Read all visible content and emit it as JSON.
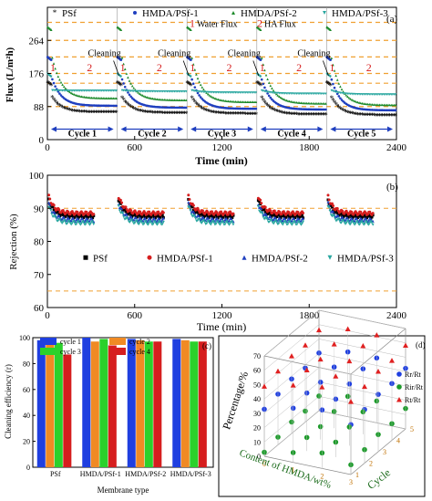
{
  "chart_data": [
    {
      "panel": "(a)",
      "type": "line",
      "xlabel": "Time (min)",
      "ylabel": "Flux (L/m²h)",
      "xlim": [
        0,
        2400
      ],
      "ylim": [
        0,
        352
      ],
      "xticks": [
        0,
        600,
        1200,
        1800,
        2400
      ],
      "yticks": [
        0,
        88,
        176,
        264
      ],
      "grid": "dashed orange horizontal reference lines",
      "legend": {
        "placement": "top",
        "entries": [
          "PSf",
          "HMDA/PSf-1",
          "HMDA/PSf-2",
          "HMDA/PSf-3"
        ]
      },
      "annotations": {
        "step_legend": [
          {
            "num": "1",
            "text": "Water Flux"
          },
          {
            "num": "2",
            "text": "HA Flux"
          }
        ],
        "cleaning": "Cleaning",
        "cycles": [
          "Cycle 1",
          "Cycle 2",
          "Cycle 3",
          "Cycle 4",
          "Cycle 5"
        ]
      },
      "cycle_boundaries": [
        0,
        480,
        960,
        1440,
        1920,
        2400
      ],
      "series": [
        {
          "name": "PSf",
          "color": "#d61e1e",
          "initial_flux": 150,
          "ha_flux": [
            70,
            68,
            66,
            64,
            62
          ]
        },
        {
          "name": "HMDA/PSf-1",
          "color": "#1f3fbf",
          "initial_flux": 220,
          "ha_flux": [
            90,
            85,
            82,
            80,
            78
          ]
        },
        {
          "name": "HMDA/PSf-2",
          "color": "#1c8a2a",
          "initial_flux": 300,
          "ha_flux": [
            110,
            105,
            100,
            96,
            92
          ]
        },
        {
          "name": "HMDA/PSf-3",
          "color": "#2aa7a0",
          "initial_flux": 175,
          "ha_flux": [
            130,
            128,
            125,
            122,
            120
          ]
        }
      ]
    },
    {
      "panel": "(b)",
      "type": "scatter",
      "xlabel": "Time (min)",
      "ylabel": "Rejection (%)",
      "xlim": [
        0,
        2400
      ],
      "ylim": [
        60,
        100
      ],
      "xticks": [
        0,
        600,
        1200,
        1800,
        2400
      ],
      "yticks": [
        60,
        70,
        80,
        90,
        100
      ],
      "legend": {
        "placement": "bottom",
        "entries": [
          "PSf",
          "HMDA/PSf-1",
          "HMDA/PSf-2",
          "HMDA/PSf-3"
        ]
      },
      "series": [
        {
          "name": "PSf",
          "marker": "square",
          "color": "#000000",
          "level": 87.5
        },
        {
          "name": "HMDA/PSf-1",
          "marker": "circle",
          "color": "#d61e1e",
          "level": 88.5
        },
        {
          "name": "HMDA/PSf-2",
          "marker": "triangle",
          "color": "#1f3fbf",
          "level": 86.5
        },
        {
          "name": "HMDA/PSf-3",
          "marker": "triangle-down",
          "color": "#2aa7a0",
          "level": 85.5
        }
      ]
    },
    {
      "panel": "(c)",
      "type": "bar",
      "xlabel": "Membrane type",
      "ylabel": "Cleaning efficiency (r)",
      "ylim": [
        0,
        100
      ],
      "yticks": [
        0,
        20,
        40,
        60,
        80,
        100
      ],
      "categories": [
        "PSf",
        "HMDA/PSf-1",
        "HMDA/PSf-2",
        "HMDA/PSf-3"
      ],
      "legend": {
        "placement": "top",
        "entries": [
          "cycle 1",
          "cycle 2",
          "cycle 3",
          "cycle 4"
        ]
      },
      "series": [
        {
          "name": "cycle 1",
          "color": "#1f3fe0",
          "values": [
            98,
            100,
            99,
            99
          ]
        },
        {
          "name": "cycle 2",
          "color": "#f08a24",
          "values": [
            97,
            97,
            98,
            98
          ]
        },
        {
          "name": "cycle 3",
          "color": "#2bd12b",
          "values": [
            96,
            99,
            97,
            97
          ]
        },
        {
          "name": "cycle 4",
          "color": "#d61e1e",
          "values": [
            87,
            94,
            97,
            97
          ]
        }
      ]
    },
    {
      "panel": "(d)",
      "type": "scatter",
      "zlabel": "Percentage/%",
      "xlabel": "Content of HMDA/wt%",
      "ylabel": "Cycle",
      "zticks": [
        0,
        10,
        20,
        30,
        40,
        50,
        60,
        70
      ],
      "cycle_ticks": [
        1,
        2,
        3,
        4,
        5
      ],
      "content_ticks": [
        0,
        1,
        2,
        3
      ],
      "legend": {
        "placement": "right",
        "entries": [
          "Rr/Rt",
          "Rir/Rt",
          "Rt/Rt"
        ]
      },
      "series": [
        {
          "name": "Rr/Rt",
          "color": "#1f3fe0",
          "approx_range": [
            30,
            45
          ]
        },
        {
          "name": "Rir/Rt",
          "color": "#1c9a2a",
          "approx_range": [
            2,
            15
          ]
        },
        {
          "name": "Rt/Rt",
          "color": "#e02020",
          "approx_range": [
            45,
            62
          ]
        }
      ]
    }
  ],
  "text": {
    "a_panel": "(a)",
    "b_panel": "(b)",
    "c_panel": "(c)",
    "d_panel": "(d)",
    "a_ylabel": "Flux (L/m²h)",
    "a_xlabel": "Time (min)",
    "b_ylabel": "Rejection (%)",
    "b_xlabel": "Time (min)",
    "c_ylabel": "Cleaning efficiency (r)",
    "c_xlabel": "Membrane type",
    "d_zlabel": "Percentage/%",
    "d_xlabel": "Content of HMDA/wt%",
    "d_ylabel": "Cycle",
    "step1_num": "1",
    "step1_text": "Water Flux",
    "step2_num": "2",
    "step2_text": "HA Flux"
  }
}
